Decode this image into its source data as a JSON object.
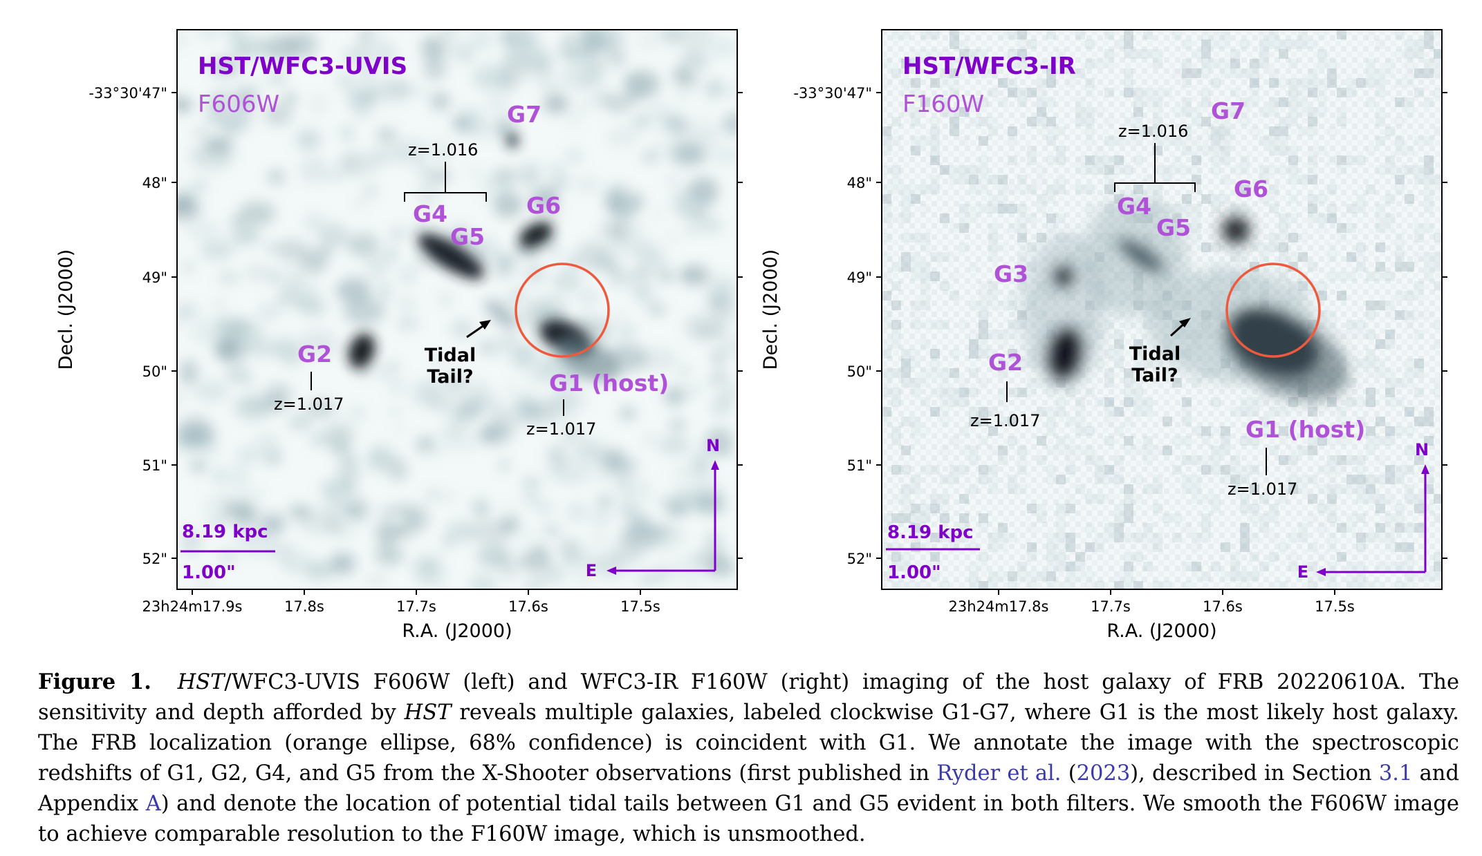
{
  "colors": {
    "accent_purple": "#7e00c9",
    "galaxy_label_purple": "#b052d8",
    "localization_orange": "#ee5a3e",
    "image_dark": "#11161e",
    "image_light": "#d6e4e6",
    "citation_link": "#3a3aa8"
  },
  "panels": [
    {
      "instrument": "HST/WFC3-UVIS",
      "filter": "F606W",
      "ra_ticks": [
        "23h24m17.9s",
        "17.8s",
        "17.7s",
        "17.6s",
        "17.5s"
      ],
      "dec_ticks": [
        "-33°30'47\"",
        "48\"",
        "49\"",
        "50\"",
        "51\"",
        "52\""
      ],
      "xlabel": "R.A. (J2000)",
      "ylabel": "Decl. (J2000)",
      "labels": {
        "g1": "G1 (host)",
        "g2": "G2",
        "g3": "",
        "g4": "G4",
        "g5": "G5",
        "g6": "G6",
        "g7": "G7",
        "z_g1": "z=1.017",
        "z_g2": "z=1.017",
        "z_g45": "z=1.016",
        "tidal_line1": "Tidal",
        "tidal_line2": "Tail?",
        "north": "N",
        "east": "E",
        "scale_kpc": "8.19 kpc",
        "scale_arcsec": "1.00\""
      }
    },
    {
      "instrument": "HST/WFC3-IR",
      "filter": "F160W",
      "ra_ticks": [
        "23h24m17.8s",
        "17.7s",
        "17.6s",
        "17.5s"
      ],
      "dec_ticks": [
        "-33°30'47\"",
        "48\"",
        "49\"",
        "50\"",
        "51\"",
        "52\""
      ],
      "xlabel": "R.A. (J2000)",
      "ylabel": "Decl. (J2000)",
      "labels": {
        "g1": "G1 (host)",
        "g2": "G2",
        "g3": "G3",
        "g4": "G4",
        "g5": "G5",
        "g6": "G6",
        "g7": "G7",
        "z_g1": "z=1.017",
        "z_g2": "z=1.017",
        "z_g45": "z=1.016",
        "tidal_line1": "Tidal",
        "tidal_line2": "Tail?",
        "north": "N",
        "east": "E",
        "scale_kpc": "8.19 kpc",
        "scale_arcsec": "1.00\""
      }
    }
  ],
  "caption": {
    "label": "Figure 1.",
    "hst1": "HST",
    "p1": "/WFC3-UVIS F606W (left) and WFC3-IR F160W (right) imaging of the host galaxy of FRB 20220610A. The sensitivity and depth afforded by ",
    "hst2": "HST",
    "p2": " reveals multiple galaxies, labeled clockwise G1-G7, where G1 is the most likely host galaxy. The FRB localization (orange ellipse, 68% confidence) is coincident with G1. We annotate the image with the spectroscopic redshifts of G1, G2, G4, and G5 from the X-Shooter observations (first published in ",
    "ref_author": "Ryder et al.",
    "ref_open": " (",
    "ref_year": "2023",
    "p3": "), described in Section ",
    "section_ref": "3.1",
    "p4": " and Appendix ",
    "appendix_ref": "A",
    "p5": ") and denote the location of potential tidal tails between G1 and G5 evident in both filters. We smooth the F606W image to achieve comparable resolution to the F160W image, which is unsmoothed."
  }
}
